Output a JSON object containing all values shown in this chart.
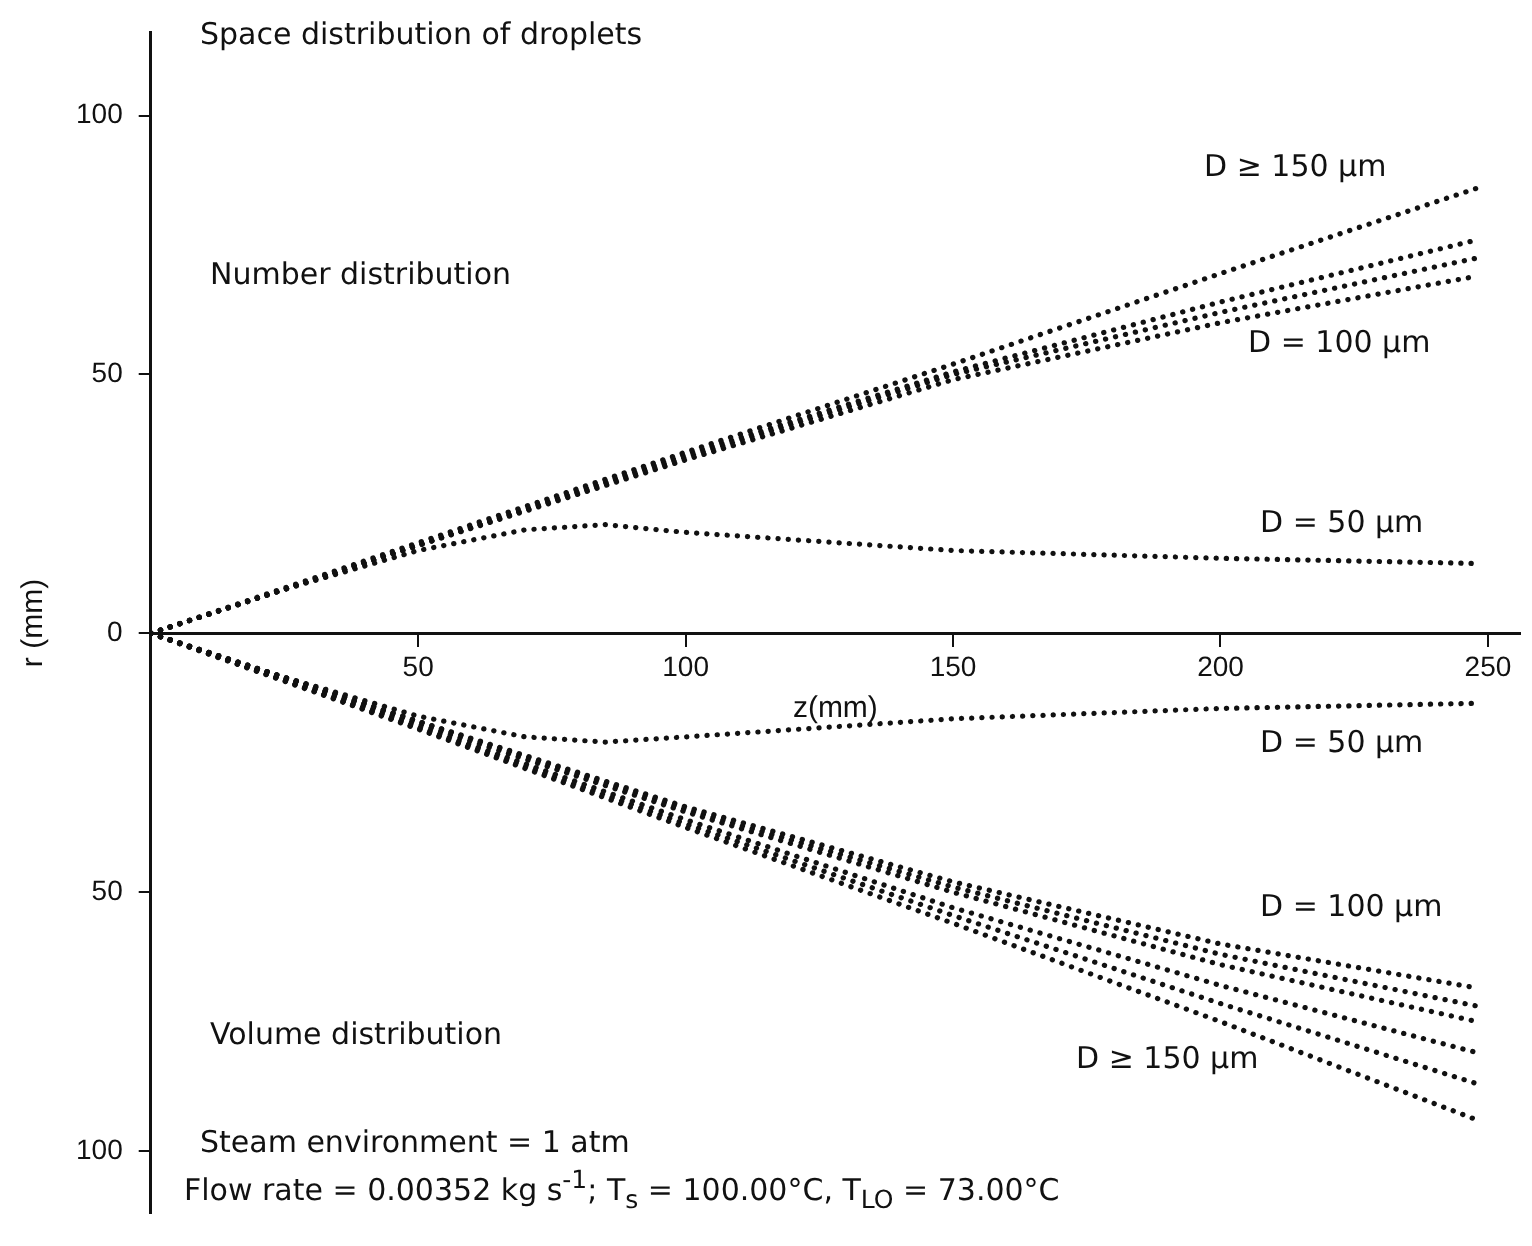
{
  "chart_data": {
    "type": "line",
    "title": "Space distribution of droplets",
    "xlabel": "z(mm)",
    "ylabel": "r (mm)",
    "xlim": [
      0,
      256
    ],
    "xticks": [
      50,
      100,
      150,
      200,
      250
    ],
    "ylim": [
      -112,
      116
    ],
    "yticks": [
      100,
      50,
      0,
      {
        "value": -50,
        "label": "50"
      },
      {
        "value": -100,
        "label": "100"
      }
    ],
    "grid": false,
    "legend": false,
    "marker": "none",
    "line_style": "dotted",
    "series": [
      {
        "color": "#111111",
        "x": [
          0,
          50,
          100,
          150,
          200,
          248
        ],
        "values": [
          0,
          17.5,
          35,
          52,
          69.5,
          86
        ]
      },
      {
        "color": "#111111",
        "x": [
          0,
          50,
          100,
          150,
          200,
          248
        ],
        "values": [
          0,
          17,
          34.5,
          50.5,
          64,
          76
        ]
      },
      {
        "color": "#111111",
        "x": [
          0,
          50,
          100,
          150,
          200,
          248
        ],
        "values": [
          0,
          17,
          34,
          50,
          62,
          72.5
        ]
      },
      {
        "color": "#111111",
        "x": [
          0,
          50,
          100,
          150,
          200,
          248
        ],
        "values": [
          0,
          17,
          33.5,
          49,
          60,
          69
        ]
      },
      {
        "color": "#111111",
        "x": [
          0,
          25,
          50,
          70,
          85,
          100,
          150,
          200,
          248
        ],
        "values": [
          0,
          8.5,
          16,
          20,
          21,
          19.5,
          16,
          14.5,
          13.5
        ]
      },
      {
        "color": "#111111",
        "x": [
          0,
          25,
          50,
          70,
          85,
          100,
          150,
          200,
          248
        ],
        "values": [
          0,
          -8.5,
          -16,
          -20,
          -21,
          -20,
          -16.5,
          -14.5,
          -13.5
        ]
      },
      {
        "color": "#111111",
        "x": [
          0,
          50,
          100,
          150,
          200,
          248
        ],
        "values": [
          0,
          -17,
          -33.5,
          -48,
          -60,
          -68.5
        ]
      },
      {
        "color": "#111111",
        "x": [
          0,
          50,
          100,
          150,
          200,
          248
        ],
        "values": [
          0,
          -17,
          -34,
          -49,
          -62,
          -72
        ]
      },
      {
        "color": "#111111",
        "x": [
          0,
          50,
          100,
          150,
          200,
          248
        ],
        "values": [
          0,
          -17.5,
          -34.5,
          -50,
          -64,
          -75
        ]
      },
      {
        "color": "#111111",
        "x": [
          0,
          50,
          100,
          150,
          200,
          248
        ],
        "values": [
          0,
          -18,
          -36,
          -53,
          -68,
          -81
        ]
      },
      {
        "color": "#111111",
        "x": [
          0,
          50,
          100,
          150,
          200,
          248
        ],
        "values": [
          0,
          -18.3,
          -36.8,
          -54.5,
          -71.5,
          -87
        ]
      },
      {
        "color": "#111111",
        "x": [
          0,
          50,
          100,
          150,
          200,
          248
        ],
        "values": [
          0,
          -18.5,
          -37.5,
          -56,
          -75,
          -94
        ]
      }
    ],
    "annotations": [
      "D ≥ 150 μm",
      "D = 100 μm",
      "D = 50 μm",
      "D = 50 μm",
      "D = 100 μm",
      "D ≥ 150 μm",
      "Number distribution",
      "Volume distribution",
      "Steam environment = 1 atm",
      "Flow rate = 0.00352 kg s$^{-1}$; T$_{s}$ = 100.00°C, T$_{LO}$ = 73.00°C"
    ]
  }
}
